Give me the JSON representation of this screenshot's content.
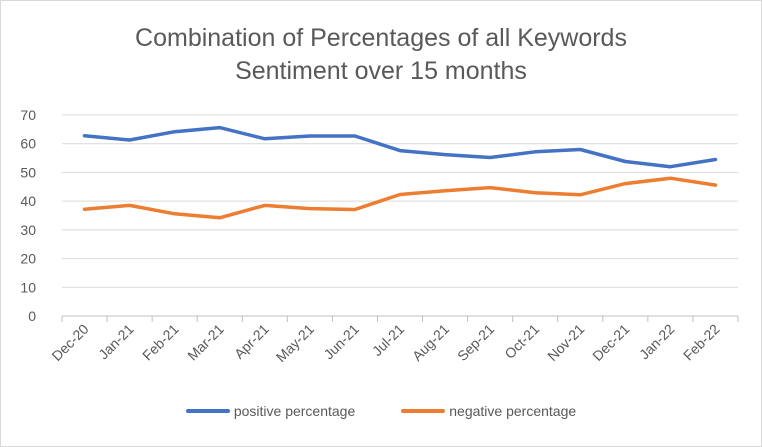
{
  "chart_data": {
    "type": "line",
    "title_line1": "Combination of Percentages of all Keywords",
    "title_line2": "Sentiment over 15 months",
    "categories": [
      "Dec-20",
      "Jan-21",
      "Feb-21",
      "Mar-21",
      "Apr-21",
      "May-21",
      "Jun-21",
      "Jul-21",
      "Aug-21",
      "Sep-21",
      "Oct-21",
      "Nov-21",
      "Dec-21",
      "Jan-22",
      "Feb-22"
    ],
    "series": [
      {
        "name": "positive percentage",
        "color": "#4472c4",
        "values": [
          62.8,
          61.3,
          64.2,
          65.6,
          61.7,
          62.7,
          62.7,
          57.6,
          56.2,
          55.2,
          57.2,
          58.0,
          53.8,
          52.0,
          54.5
        ]
      },
      {
        "name": "negative percentage",
        "color": "#ed7d31",
        "values": [
          37.2,
          38.5,
          35.6,
          34.2,
          38.5,
          37.4,
          37.1,
          42.3,
          43.6,
          44.7,
          42.9,
          42.2,
          46.1,
          48.0,
          45.6
        ]
      }
    ],
    "y_ticks": [
      "0",
      "10",
      "20",
      "30",
      "40",
      "50",
      "60",
      "70"
    ],
    "ylim": [
      0,
      70
    ],
    "grid": true,
    "legend_position": "bottom"
  }
}
